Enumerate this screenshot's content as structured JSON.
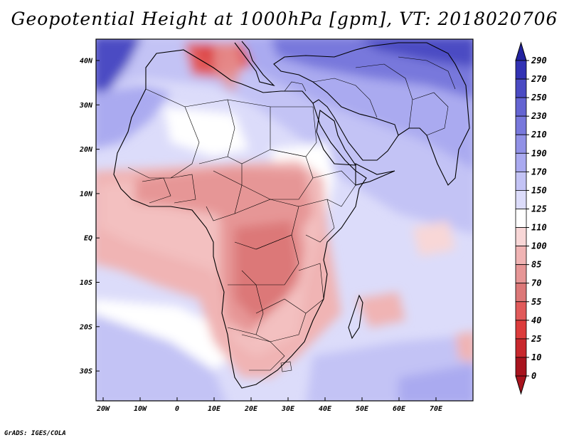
{
  "title": "Geopotential Height at 1000hPa [gpm], VT: 2018020706",
  "footer": "GrADS: IGES/COLA",
  "axes": {
    "y_ticks": [
      "40N",
      "30N",
      "20N",
      "10N",
      "EQ",
      "10S",
      "20S",
      "30S"
    ],
    "x_ticks": [
      "20W",
      "10W",
      "0",
      "10E",
      "20E",
      "30E",
      "40E",
      "50E",
      "60E",
      "70E"
    ]
  },
  "colorbar": {
    "levels": [
      "0",
      "10",
      "25",
      "40",
      "55",
      "70",
      "85",
      "100",
      "110",
      "125",
      "150",
      "170",
      "190",
      "210",
      "230",
      "250",
      "270",
      "290"
    ],
    "colors": [
      "#a8141e",
      "#c8282d",
      "#dc3c3c",
      "#e15a5a",
      "#dc7878",
      "#e69696",
      "#f0b4b4",
      "#f8d7d7",
      "#ffffff",
      "#dcdcfa",
      "#c3c3f5",
      "#aaaaf0",
      "#9191e6",
      "#7878dc",
      "#6464d2",
      "#4b4bc3",
      "#3232b4",
      "#2323a0"
    ]
  }
}
